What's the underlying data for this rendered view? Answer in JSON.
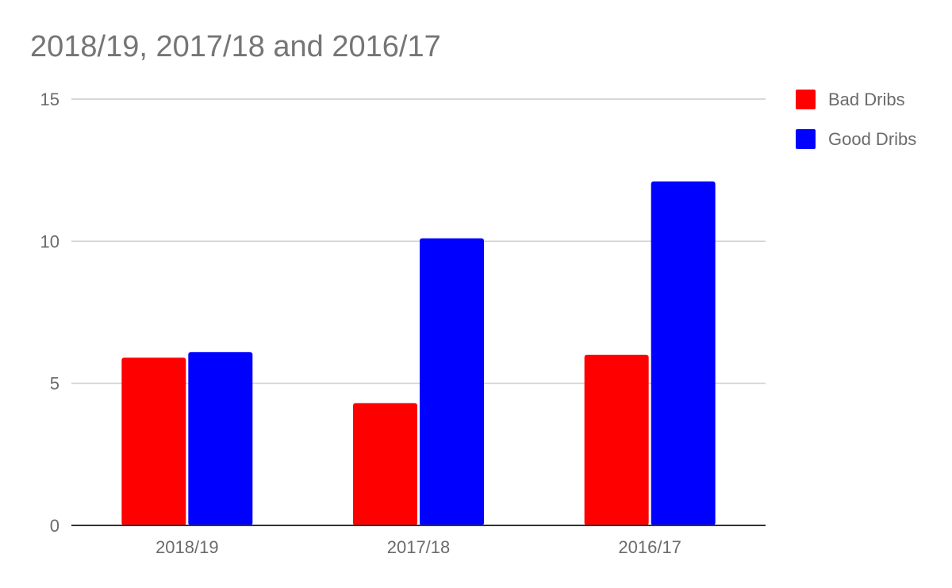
{
  "chart_data": {
    "type": "bar",
    "title": "2018/19, 2017/18 and 2016/17",
    "xlabel": "",
    "ylabel": "",
    "categories": [
      "2018/19",
      "2017/18",
      "2016/17"
    ],
    "series": [
      {
        "name": "Bad Dribs",
        "color": "#ff0000",
        "values": [
          5.9,
          4.3,
          6.0
        ]
      },
      {
        "name": "Good Dribs",
        "color": "#0000ff",
        "values": [
          6.1,
          10.1,
          12.1
        ]
      }
    ],
    "ylim": [
      0,
      15
    ],
    "yticks": [
      0,
      5,
      10,
      15
    ],
    "grid": true,
    "legend_position": "right"
  }
}
